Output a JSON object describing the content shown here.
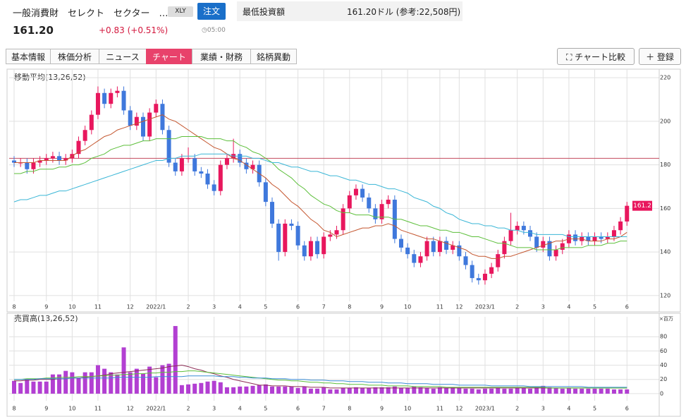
{
  "header": {
    "name": "一般消費財　セレクト　セクター　…",
    "ticker": "XLY",
    "order": "注文",
    "price": "161.20",
    "change": "+0.83 (+0.51%)",
    "time": "05:00"
  },
  "investment": {
    "label": "最低投資額",
    "value": "161.20ドル (参考:22,508円)"
  },
  "tabs": [
    "基本情報",
    "株価分析",
    "ニュース",
    "チャート",
    "業績・財務",
    "銘柄異動"
  ],
  "active_tab": "チャート",
  "buttons": [
    "チャート比較",
    "登録"
  ],
  "chart_data": [
    {
      "type": "candlestick",
      "title": "移動平均(13,26,52)",
      "categories": [
        "8",
        null,
        null,
        null,
        null,
        "9",
        null,
        null,
        null,
        "10",
        null,
        null,
        null,
        "11",
        null,
        null,
        null,
        null,
        "12",
        null,
        null,
        null,
        "2022/1",
        null,
        null,
        null,
        null,
        "2",
        null,
        null,
        null,
        "3",
        null,
        null,
        null,
        "4",
        null,
        null,
        null,
        "5",
        null,
        null,
        null,
        null,
        "6",
        null,
        null,
        null,
        "7",
        null,
        null,
        null,
        "8",
        null,
        null,
        null,
        null,
        "9",
        null,
        null,
        null,
        "10",
        null,
        null,
        null,
        null,
        "11",
        null,
        null,
        "12",
        null,
        null,
        null,
        "2023/1",
        null,
        null,
        null,
        null,
        "2",
        null,
        null,
        null,
        "3",
        null,
        null,
        null,
        "4",
        null,
        null,
        null,
        "5",
        null,
        null,
        null,
        null,
        "6"
      ],
      "open": [
        182,
        181,
        181,
        178,
        181,
        182,
        183,
        184,
        182,
        183,
        185,
        191,
        196,
        203,
        213,
        208,
        213,
        214,
        205,
        198,
        202,
        193,
        204,
        208,
        196,
        181,
        177,
        183,
        183,
        177,
        176,
        171,
        168,
        180,
        183,
        185,
        181,
        178,
        180,
        172,
        163,
        153,
        140,
        153,
        152,
        143,
        138,
        145,
        139,
        147,
        148,
        150,
        160,
        166,
        169,
        165,
        160,
        155,
        162,
        164,
        146,
        142,
        139,
        135,
        138,
        145,
        140,
        145,
        141,
        143,
        138,
        134,
        128,
        127,
        130,
        133,
        139,
        145,
        150,
        152,
        150,
        147,
        142,
        145,
        138,
        141,
        144,
        148,
        145,
        147,
        145,
        147,
        146,
        147,
        150,
        154
      ],
      "high": [
        184,
        183,
        183,
        183,
        184,
        185,
        186,
        186,
        185,
        187,
        193,
        198,
        205,
        216,
        215,
        215,
        216,
        216,
        207,
        204,
        204,
        206,
        210,
        210,
        198,
        183,
        185,
        188,
        185,
        179,
        178,
        173,
        182,
        185,
        192,
        187,
        183,
        182,
        182,
        174,
        165,
        155,
        155,
        155,
        154,
        145,
        147,
        147,
        149,
        150,
        152,
        162,
        168,
        171,
        171,
        167,
        162,
        164,
        166,
        166,
        148,
        144,
        141,
        140,
        147,
        147,
        147,
        147,
        145,
        145,
        140,
        136,
        130,
        132,
        135,
        141,
        147,
        158,
        154,
        154,
        152,
        149,
        147,
        147,
        143,
        146,
        150,
        150,
        149,
        149,
        149,
        149,
        149,
        152,
        156,
        163
      ],
      "low": [
        179,
        179,
        176,
        176,
        179,
        180,
        181,
        180,
        180,
        181,
        183,
        189,
        194,
        201,
        206,
        206,
        211,
        203,
        196,
        196,
        191,
        191,
        202,
        194,
        179,
        175,
        175,
        181,
        175,
        174,
        169,
        166,
        166,
        178,
        181,
        179,
        176,
        176,
        170,
        161,
        151,
        136,
        138,
        150,
        141,
        136,
        136,
        137,
        137,
        145,
        146,
        148,
        158,
        164,
        163,
        158,
        153,
        153,
        160,
        144,
        140,
        137,
        133,
        133,
        136,
        138,
        138,
        139,
        139,
        136,
        132,
        126,
        125,
        125,
        128,
        131,
        137,
        143,
        148,
        148,
        145,
        140,
        140,
        136,
        136,
        139,
        142,
        143,
        143,
        143,
        143,
        144,
        144,
        145,
        148,
        152
      ],
      "close": [
        181,
        181,
        178,
        181,
        182,
        183,
        184,
        182,
        183,
        185,
        191,
        196,
        203,
        213,
        208,
        213,
        214,
        205,
        198,
        202,
        193,
        204,
        208,
        196,
        181,
        177,
        183,
        183,
        177,
        176,
        171,
        168,
        180,
        183,
        185,
        181,
        178,
        180,
        172,
        163,
        153,
        140,
        153,
        152,
        143,
        138,
        145,
        139,
        147,
        148,
        150,
        160,
        166,
        169,
        165,
        160,
        155,
        162,
        164,
        146,
        142,
        139,
        135,
        138,
        145,
        140,
        145,
        141,
        143,
        138,
        134,
        128,
        127,
        130,
        133,
        139,
        145,
        150,
        152,
        150,
        147,
        142,
        145,
        138,
        141,
        144,
        148,
        145,
        147,
        145,
        147,
        146,
        147,
        150,
        154,
        161.2
      ],
      "up_color": "#e8175d",
      "down_color": "#3f78dc",
      "series": [
        {
          "color": "#c4562f",
          "values": [
            181,
            181,
            181,
            181,
            182,
            182,
            182,
            182,
            182,
            184,
            186,
            187,
            189,
            191,
            193,
            194,
            196,
            197,
            198,
            199,
            200,
            201,
            202,
            203,
            201,
            200,
            198,
            196,
            194,
            192,
            190,
            188,
            187,
            185,
            183,
            182,
            180,
            178,
            176,
            174,
            171,
            169,
            166,
            163,
            161,
            158,
            155,
            153,
            150,
            149,
            147,
            148,
            149,
            150,
            151,
            151,
            152,
            152,
            153,
            152,
            150,
            149,
            148,
            147,
            146,
            146,
            145,
            144,
            143,
            142,
            141,
            139,
            138,
            138,
            137,
            137,
            138,
            138,
            139,
            140,
            141,
            142,
            143,
            144,
            145,
            145,
            146,
            146,
            146,
            145,
            145,
            145,
            146,
            146,
            147,
            149
          ]
        },
        {
          "color": "#5cbf3a",
          "values": [
            176,
            176,
            177,
            177,
            178,
            178,
            178,
            179,
            179,
            180,
            180,
            181,
            183,
            184,
            185,
            187,
            188,
            189,
            189,
            190,
            191,
            191,
            192,
            192,
            192,
            192,
            193,
            193,
            193,
            193,
            192,
            192,
            192,
            191,
            191,
            189,
            188,
            186,
            185,
            183,
            181,
            178,
            176,
            174,
            171,
            169,
            166,
            164,
            162,
            161,
            159,
            158,
            158,
            157,
            157,
            157,
            156,
            156,
            156,
            155,
            155,
            154,
            153,
            152,
            152,
            151,
            150,
            150,
            149,
            149,
            148,
            147,
            147,
            146,
            145,
            144,
            144,
            143,
            142,
            142,
            142,
            141,
            141,
            141,
            141,
            142,
            142,
            142,
            142,
            143,
            143,
            143,
            144,
            144,
            145,
            145
          ]
        },
        {
          "color": "#3ab6d6",
          "values": [
            163,
            164,
            164,
            165,
            166,
            166,
            167,
            168,
            168,
            169,
            170,
            171,
            172,
            173,
            174,
            175,
            176,
            177,
            178,
            179,
            180,
            181,
            182,
            182,
            183,
            183,
            184,
            184,
            184,
            185,
            185,
            185,
            185,
            185,
            184,
            184,
            184,
            183,
            183,
            182,
            181,
            181,
            180,
            179,
            179,
            178,
            177,
            177,
            176,
            175,
            175,
            174,
            173,
            173,
            172,
            171,
            171,
            170,
            169,
            169,
            168,
            167,
            165,
            164,
            163,
            161,
            160,
            158,
            157,
            155,
            154,
            153,
            153,
            152,
            152,
            151,
            151,
            150,
            150,
            149,
            149,
            148,
            148,
            148,
            148,
            148,
            147,
            147,
            147,
            147,
            147,
            147,
            147,
            147,
            147,
            147
          ]
        }
      ],
      "hline": 183,
      "hline_color": "#c24a5e",
      "ylim": [
        118,
        222
      ],
      "yticks": [
        120,
        140,
        160,
        180,
        200,
        220
      ],
      "grid": true
    },
    {
      "type": "bar",
      "title": "売買高(13,26,52)",
      "unit": "×百万",
      "categories": [
        "8",
        null,
        null,
        null,
        null,
        "9",
        null,
        null,
        null,
        "10",
        null,
        null,
        null,
        "11",
        null,
        null,
        null,
        null,
        "12",
        null,
        null,
        null,
        "2022/1",
        null,
        null,
        null,
        null,
        "2",
        null,
        null,
        null,
        "3",
        null,
        null,
        null,
        "4",
        null,
        null,
        null,
        "5",
        null,
        null,
        null,
        null,
        "6",
        null,
        null,
        null,
        "7",
        null,
        null,
        null,
        "8",
        null,
        null,
        null,
        null,
        "9",
        null,
        null,
        null,
        "10",
        null,
        null,
        null,
        null,
        "11",
        null,
        null,
        "12",
        null,
        null,
        null,
        "2023/1",
        null,
        null,
        null,
        null,
        "2",
        null,
        null,
        null,
        "3",
        null,
        null,
        null,
        "4",
        null,
        null,
        null,
        "5",
        null,
        null,
        null,
        null,
        "6"
      ],
      "values": [
        18,
        15,
        20,
        17,
        17,
        17,
        27,
        27,
        32,
        30,
        22,
        30,
        30,
        40,
        35,
        30,
        27,
        65,
        30,
        35,
        28,
        38,
        23,
        40,
        42,
        95,
        12,
        13,
        14,
        15,
        17,
        18,
        16,
        9,
        9,
        10,
        10,
        11,
        12,
        13,
        10,
        10,
        10,
        10,
        8,
        10,
        7,
        7,
        9,
        6,
        6,
        8,
        8,
        9,
        8,
        8,
        9,
        9,
        9,
        10,
        8,
        8,
        10,
        9,
        8,
        7,
        9,
        8,
        9,
        8,
        7,
        7,
        6,
        7,
        7,
        8,
        7,
        7,
        8,
        8,
        7,
        9,
        11,
        9,
        8,
        7,
        8,
        7,
        7,
        7,
        7,
        7,
        7,
        6,
        6,
        6
      ],
      "color": "#b23fd2",
      "series": [
        {
          "color": "#8c2d55",
          "values": [
            18,
            18,
            19,
            19,
            20,
            20,
            20,
            21,
            21,
            22,
            22,
            23,
            24,
            25,
            26,
            28,
            29,
            30,
            31,
            32,
            33,
            34,
            35,
            36,
            38,
            39,
            40,
            38,
            35,
            33,
            30,
            28,
            25,
            23,
            20,
            18,
            16,
            14,
            12,
            12,
            11,
            11,
            11,
            10,
            10,
            10,
            9,
            9,
            9,
            8,
            8,
            8,
            8,
            8,
            8,
            8,
            8,
            8,
            8,
            8,
            8,
            8,
            8,
            8,
            8,
            8,
            8,
            8,
            8,
            8,
            8,
            8,
            8,
            8,
            8,
            8,
            8,
            8,
            8,
            8,
            8,
            8,
            8,
            8,
            8,
            8,
            8,
            8,
            8,
            8,
            8,
            8,
            8,
            8,
            8,
            8
          ]
        },
        {
          "color": "#5cbf3a",
          "values": [
            20,
            20,
            21,
            21,
            21,
            22,
            22,
            23,
            23,
            23,
            24,
            24,
            24,
            25,
            25,
            26,
            26,
            27,
            27,
            28,
            28,
            29,
            29,
            30,
            30,
            31,
            31,
            32,
            32,
            31,
            30,
            29,
            28,
            27,
            26,
            25,
            24,
            23,
            22,
            21,
            20,
            19,
            19,
            18,
            18,
            17,
            16,
            16,
            15,
            15,
            14,
            14,
            13,
            13,
            13,
            12,
            12,
            12,
            11,
            11,
            11,
            11,
            10,
            10,
            10,
            10,
            10,
            9,
            9,
            9,
            9,
            9,
            9,
            9,
            9,
            9,
            9,
            9,
            9,
            9,
            9,
            9,
            9,
            8,
            8,
            8,
            8,
            8,
            8,
            8,
            8,
            8,
            8,
            8,
            8,
            8
          ]
        },
        {
          "color": "#3a8ed6",
          "values": [
            20,
            20,
            20,
            20,
            21,
            21,
            21,
            21,
            21,
            22,
            22,
            22,
            22,
            22,
            22,
            22,
            23,
            23,
            23,
            23,
            23,
            23,
            24,
            24,
            24,
            24,
            24,
            25,
            25,
            25,
            25,
            25,
            24,
            24,
            24,
            23,
            23,
            22,
            22,
            22,
            21,
            21,
            21,
            20,
            20,
            20,
            19,
            19,
            19,
            18,
            18,
            18,
            17,
            17,
            17,
            16,
            16,
            16,
            15,
            15,
            15,
            14,
            14,
            14,
            14,
            13,
            13,
            13,
            13,
            12,
            12,
            12,
            12,
            12,
            11,
            11,
            11,
            11,
            11,
            11,
            10,
            10,
            10,
            10,
            10,
            10,
            10,
            10,
            10,
            9,
            9,
            9,
            9,
            9,
            9,
            9
          ]
        }
      ],
      "ylim": [
        -8,
        102
      ],
      "yticks": [
        0,
        20,
        40,
        60,
        80
      ],
      "grid": true
    }
  ]
}
